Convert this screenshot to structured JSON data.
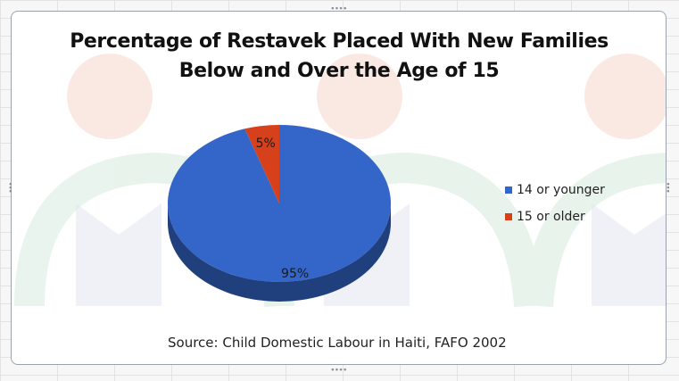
{
  "chart_data": {
    "type": "pie",
    "title_lines": [
      "Percentage of Restavek Placed With New Families",
      "Below and Over the Age of 15"
    ],
    "categories": [
      "14 or younger",
      "15 or older"
    ],
    "values": [
      95,
      5
    ],
    "data_labels": [
      "95%",
      "5%"
    ],
    "colors": [
      "#3465c9",
      "#d6401a"
    ],
    "style": "3d",
    "legend_position": "right",
    "source": "Source: Child Domestic Labour in Haiti, FAFO 2002"
  }
}
